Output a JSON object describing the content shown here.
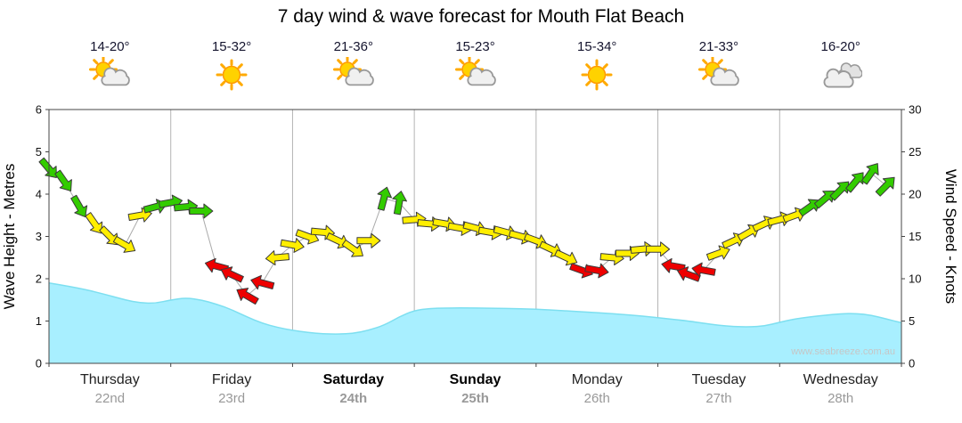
{
  "title": "7 day wind & wave forecast for Mouth Flat Beach",
  "watermark": "www.seabreeze.com.au",
  "axes": {
    "left_label": "Wave Height - Metres",
    "right_label": "Wind Speed - Knots",
    "left_ticks": [
      0,
      1,
      2,
      3,
      4,
      5,
      6
    ],
    "right_ticks": [
      0,
      5,
      10,
      15,
      20,
      25,
      30
    ]
  },
  "days": [
    {
      "name": "Thursday",
      "date": "22nd",
      "temp": "14-20°",
      "icon": "sun-cloud",
      "weekend": false
    },
    {
      "name": "Friday",
      "date": "23rd",
      "temp": "15-32°",
      "icon": "sun",
      "weekend": false
    },
    {
      "name": "Saturday",
      "date": "24th",
      "temp": "21-36°",
      "icon": "sun-cloud",
      "weekend": true
    },
    {
      "name": "Sunday",
      "date": "25th",
      "temp": "15-23°",
      "icon": "sun-cloud",
      "weekend": true
    },
    {
      "name": "Monday",
      "date": "26th",
      "temp": "15-34°",
      "icon": "sun",
      "weekend": false
    },
    {
      "name": "Tuesday",
      "date": "27th",
      "temp": "21-33°",
      "icon": "sun-cloud",
      "weekend": false
    },
    {
      "name": "Wednesday",
      "date": "28th",
      "temp": "16-20°",
      "icon": "clouds",
      "weekend": false
    }
  ],
  "colors": {
    "wave_fill": "#a8efff",
    "wave_stroke": "#7ddff0",
    "wind_green": "#33cc00",
    "wind_yellow": "#ffee00",
    "wind_red": "#ee0000",
    "arrow_outline": "#3a3a3a",
    "grid": "#b4b4b4",
    "axis": "#444444",
    "connector": "#aaaaaa"
  },
  "chart_data": {
    "type": "area+wind-arrows",
    "x_unit": "hours from Thursday 00:00",
    "x_range": [
      0,
      168
    ],
    "wave": {
      "name": "Wave Height",
      "unit": "m",
      "ylim": [
        0,
        6
      ],
      "points": [
        [
          0,
          1.9
        ],
        [
          6,
          1.78
        ],
        [
          12,
          1.6
        ],
        [
          15,
          1.5
        ],
        [
          18,
          1.43
        ],
        [
          21,
          1.42
        ],
        [
          24,
          1.5
        ],
        [
          27,
          1.55
        ],
        [
          30,
          1.5
        ],
        [
          33,
          1.4
        ],
        [
          36,
          1.27
        ],
        [
          39,
          1.1
        ],
        [
          42,
          0.95
        ],
        [
          45,
          0.85
        ],
        [
          48,
          0.78
        ],
        [
          51,
          0.73
        ],
        [
          54,
          0.7
        ],
        [
          57,
          0.69
        ],
        [
          60,
          0.71
        ],
        [
          63,
          0.78
        ],
        [
          66,
          0.9
        ],
        [
          69,
          1.1
        ],
        [
          72,
          1.25
        ],
        [
          75,
          1.3
        ],
        [
          78,
          1.31
        ],
        [
          84,
          1.31
        ],
        [
          90,
          1.3
        ],
        [
          96,
          1.28
        ],
        [
          102,
          1.24
        ],
        [
          108,
          1.2
        ],
        [
          114,
          1.15
        ],
        [
          120,
          1.08
        ],
        [
          126,
          1.0
        ],
        [
          129,
          0.95
        ],
        [
          132,
          0.9
        ],
        [
          135,
          0.87
        ],
        [
          138,
          0.86
        ],
        [
          141,
          0.88
        ],
        [
          144,
          0.97
        ],
        [
          147,
          1.05
        ],
        [
          150,
          1.1
        ],
        [
          153,
          1.14
        ],
        [
          156,
          1.17
        ],
        [
          159,
          1.18
        ],
        [
          162,
          1.14
        ],
        [
          165,
          1.05
        ],
        [
          168,
          0.96
        ]
      ]
    },
    "wind": {
      "name": "Wind Speed",
      "unit": "knots",
      "ylim": [
        0,
        30
      ],
      "color_legend": {
        "green": "18+ kn",
        "yellow": "12-17 kn",
        "red": "under 12 kn"
      },
      "arrow_format": [
        "hour",
        "knots",
        "direction_deg_cw_from_east",
        "color"
      ],
      "arrows": [
        [
          0,
          23,
          50,
          "g"
        ],
        [
          3,
          21.5,
          55,
          "g"
        ],
        [
          6,
          18.5,
          60,
          "g"
        ],
        [
          9,
          16.5,
          55,
          "y"
        ],
        [
          12,
          15,
          45,
          "y"
        ],
        [
          15,
          14,
          30,
          "y"
        ],
        [
          18,
          17.5,
          -10,
          "y"
        ],
        [
          21,
          18.5,
          -15,
          "g"
        ],
        [
          24,
          19,
          -10,
          "g"
        ],
        [
          27,
          18.5,
          -5,
          "g"
        ],
        [
          30,
          18,
          0,
          "g"
        ],
        [
          33,
          11.5,
          195,
          "r"
        ],
        [
          36,
          10.5,
          205,
          "r"
        ],
        [
          39,
          8,
          210,
          "r"
        ],
        [
          42,
          9.5,
          195,
          "r"
        ],
        [
          45,
          12.5,
          175,
          "y"
        ],
        [
          48,
          14,
          10,
          "y"
        ],
        [
          51,
          15,
          20,
          "y"
        ],
        [
          54,
          15.5,
          5,
          "y"
        ],
        [
          57,
          14.5,
          25,
          "y"
        ],
        [
          60,
          13.5,
          35,
          "y"
        ],
        [
          63,
          14.5,
          0,
          "y"
        ],
        [
          66,
          19.5,
          -75,
          "g"
        ],
        [
          69,
          19,
          -80,
          "g"
        ],
        [
          72,
          17,
          -5,
          "y"
        ],
        [
          75,
          16.5,
          5,
          "y"
        ],
        [
          78,
          16.5,
          10,
          "y"
        ],
        [
          81,
          16,
          10,
          "y"
        ],
        [
          84,
          16,
          15,
          "y"
        ],
        [
          87,
          15.5,
          10,
          "y"
        ],
        [
          90,
          15.5,
          15,
          "y"
        ],
        [
          93,
          15,
          15,
          "y"
        ],
        [
          96,
          14.5,
          20,
          "y"
        ],
        [
          99,
          13.5,
          25,
          "y"
        ],
        [
          102,
          12.5,
          25,
          "y"
        ],
        [
          105,
          11,
          20,
          "r"
        ],
        [
          108,
          11,
          10,
          "r"
        ],
        [
          111,
          12.5,
          5,
          "y"
        ],
        [
          114,
          13,
          0,
          "y"
        ],
        [
          117,
          13.5,
          -5,
          "y"
        ],
        [
          120,
          13.5,
          0,
          "y"
        ],
        [
          123,
          11.5,
          190,
          "r"
        ],
        [
          126,
          10.5,
          200,
          "r"
        ],
        [
          129,
          11,
          190,
          "r"
        ],
        [
          132,
          13,
          -20,
          "y"
        ],
        [
          135,
          14.5,
          -25,
          "y"
        ],
        [
          138,
          15.5,
          -30,
          "y"
        ],
        [
          141,
          16.5,
          -25,
          "y"
        ],
        [
          144,
          17,
          -15,
          "y"
        ],
        [
          147,
          17.5,
          -20,
          "y"
        ],
        [
          150,
          18.5,
          -35,
          "g"
        ],
        [
          153,
          19.5,
          -40,
          "g"
        ],
        [
          156,
          20.5,
          -45,
          "g"
        ],
        [
          159,
          21.5,
          -50,
          "g"
        ],
        [
          162,
          22.5,
          -55,
          "g"
        ],
        [
          165,
          21,
          -45,
          "g"
        ]
      ]
    }
  }
}
